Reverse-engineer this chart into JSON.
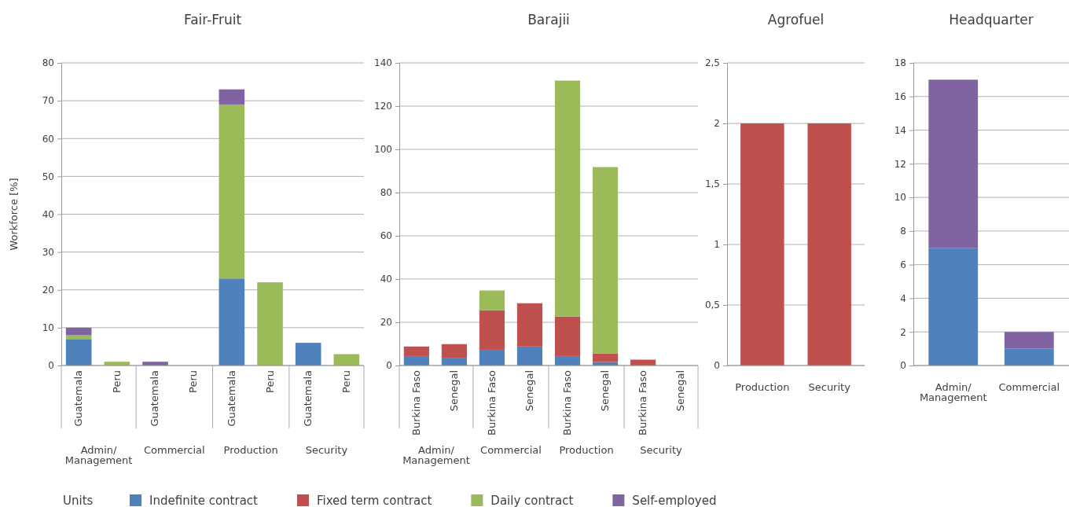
{
  "chart_data": [
    {
      "type": "bar",
      "title": "Fair-Fruit",
      "ylabel": "Workforce [%]",
      "stacked": true,
      "grid": "y",
      "legend": "bottom",
      "legend_title": "Units",
      "categories": [
        "Guatemala",
        "Peru",
        "Guatemala",
        "Peru",
        "Guatemala",
        "Peru",
        "Guatemala",
        "Peru"
      ],
      "annotations": [
        "Admin/\nManagement",
        "Commercial",
        "Production",
        "Security"
      ],
      "ylim": [
        0,
        80
      ],
      "yticks": [
        0,
        10,
        20,
        30,
        40,
        50,
        60,
        70,
        80
      ],
      "series": [
        {
          "name": "Indefinite contract",
          "color": "#4f81bd",
          "values": [
            7,
            0,
            0,
            0,
            23,
            0,
            6,
            0
          ]
        },
        {
          "name": "Fixed term contract",
          "color": "#c0504d",
          "values": [
            0,
            0,
            0,
            0,
            0,
            0,
            0,
            0
          ]
        },
        {
          "name": "Daily contract",
          "color": "#9bbb59",
          "values": [
            1,
            1,
            0,
            0,
            46,
            22,
            0,
            3
          ]
        },
        {
          "name": "Self-employed",
          "color": "#8064a2",
          "values": [
            2,
            0,
            1,
            0,
            4,
            0,
            0,
            0
          ]
        }
      ]
    },
    {
      "type": "bar",
      "title": "Barajii",
      "stacked": true,
      "grid": "y",
      "categories": [
        "Burkina Faso",
        "Senegal",
        "Burkina Faso",
        "Senegal",
        "Burkina Faso",
        "Senegal",
        "Burkina Faso",
        "Senegal"
      ],
      "annotations": [
        "Admin/\nManagement",
        "Commercial",
        "Production",
        "Security"
      ],
      "ylim": [
        0,
        140
      ],
      "yticks": [
        0,
        20,
        40,
        60,
        80,
        100,
        120,
        140
      ],
      "series": [
        {
          "color": "#4f81bd",
          "values": [
            4.4,
            3.6,
            7.3,
            8.8,
            4.4,
            1.6,
            0,
            0
          ]
        },
        {
          "color": "#c0504d",
          "values": [
            4.4,
            6.3,
            18.3,
            20,
            18.3,
            4,
            2.7,
            0
          ]
        },
        {
          "color": "#9bbb59",
          "values": [
            0,
            0,
            9.1,
            0,
            109.1,
            86.2,
            0,
            0
          ]
        }
      ]
    },
    {
      "type": "bar",
      "title": "Agrofuel",
      "grid": "y",
      "categories": [
        "Production",
        "Security"
      ],
      "ylim": [
        0,
        2.5
      ],
      "yticks": [
        0,
        {
          "value": 0.5,
          "label": "0,5"
        },
        1,
        {
          "value": 1.5,
          "label": "1,5"
        },
        2,
        {
          "value": 2.5,
          "label": "2,5"
        }
      ],
      "series": [
        {
          "color": "#c0504d",
          "values": [
            2,
            2
          ]
        }
      ]
    },
    {
      "type": "bar",
      "title": "Headquarter",
      "stacked": true,
      "grid": "y",
      "categories": [
        "Admin/\nManagement",
        "Commercial"
      ],
      "ylim": [
        0,
        18
      ],
      "yticks": [
        0,
        2,
        4,
        6,
        8,
        10,
        12,
        14,
        16,
        18
      ],
      "series": [
        {
          "color": "#4f81bd",
          "values": [
            7,
            1
          ]
        },
        {
          "color": "#8064a2",
          "values": [
            10,
            1
          ]
        }
      ]
    }
  ]
}
